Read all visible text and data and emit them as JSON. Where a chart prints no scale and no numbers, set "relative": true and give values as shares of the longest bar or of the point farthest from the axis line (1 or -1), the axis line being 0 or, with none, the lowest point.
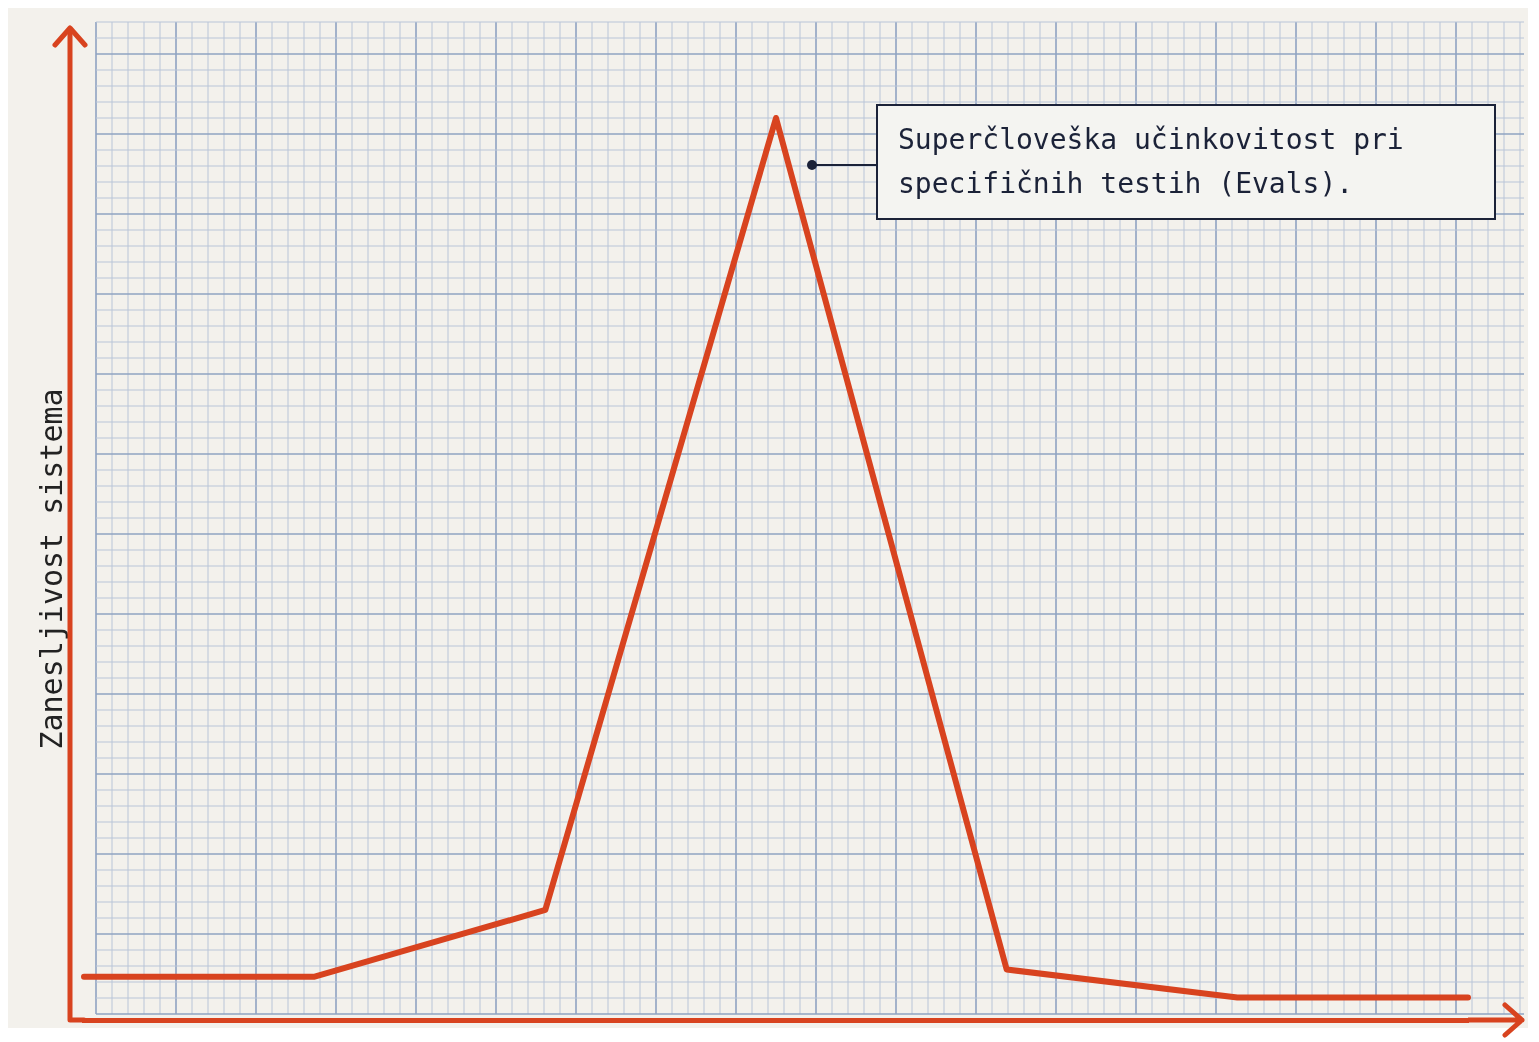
{
  "chart_data": {
    "type": "line",
    "relative": true,
    "ylabel": "Zanesljivost sistema",
    "categories": [
      null,
      null,
      null,
      null,
      null,
      null,
      null
    ],
    "series": [
      {
        "color": "#d8431f",
        "values": [
          0.048,
          0.048,
          0.122,
          1,
          0.056,
          0.025,
          0.025
        ]
      }
    ],
    "annotations": [
      "Superčloveška učinkovitost pri specifičnih testih (Evals)."
    ],
    "grid": true,
    "legend": false,
    "marker": "none",
    "line_style": "solid"
  }
}
